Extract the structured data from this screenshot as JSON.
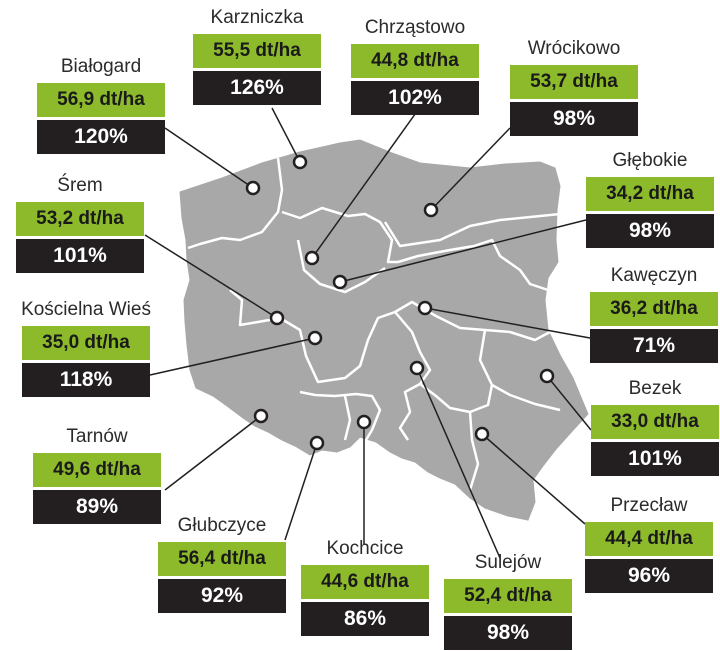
{
  "colors": {
    "map_fill": "#a8a8a8",
    "region_border": "#ffffff",
    "yield_box": "#8cba2b",
    "percent_box": "#231f20",
    "leader_line": "#231f20"
  },
  "locations": [
    {
      "name": "Białogard",
      "yield": "56,9 dt/ha",
      "percent": "120%"
    },
    {
      "name": "Karzniczka",
      "yield": "55,5 dt/ha",
      "percent": "126%"
    },
    {
      "name": "Chrząstowo",
      "yield": "44,8 dt/ha",
      "percent": "102%"
    },
    {
      "name": "Wrócikowo",
      "yield": "53,7 dt/ha",
      "percent": "98%"
    },
    {
      "name": "Głębokie",
      "yield": "34,2 dt/ha",
      "percent": "98%"
    },
    {
      "name": "Śrem",
      "yield": "53,2 dt/ha",
      "percent": "101%"
    },
    {
      "name": "Kawęczyn",
      "yield": "36,2 dt/ha",
      "percent": "71%"
    },
    {
      "name": "Kościelna Wieś",
      "yield": "35,0 dt/ha",
      "percent": "118%"
    },
    {
      "name": "Bezek",
      "yield": "33,0 dt/ha",
      "percent": "101%"
    },
    {
      "name": "Tarnów",
      "yield": "49,6 dt/ha",
      "percent": "89%"
    },
    {
      "name": "Głubczyce",
      "yield": "56,4 dt/ha",
      "percent": "92%"
    },
    {
      "name": "Kochcice",
      "yield": "44,6 dt/ha",
      "percent": "86%"
    },
    {
      "name": "Sulejów",
      "yield": "52,4 dt/ha",
      "percent": "98%"
    },
    {
      "name": "Przecław",
      "yield": "44,4 dt/ha",
      "percent": "96%"
    }
  ]
}
